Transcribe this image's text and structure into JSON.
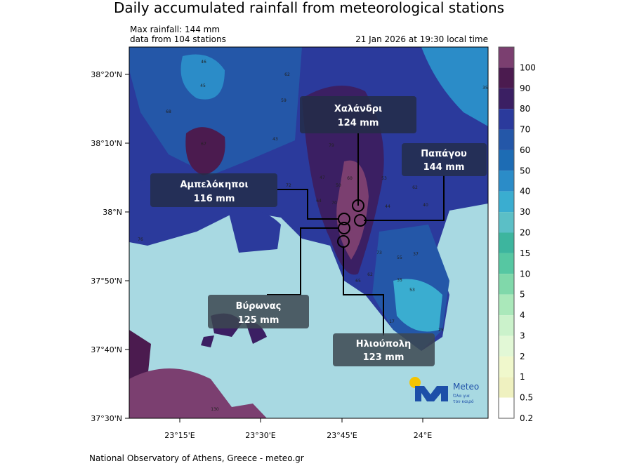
{
  "header": {
    "title": "Daily accumulated rainfall from meteorological stations",
    "max_rainfall": "Max rainfall: 144 mm",
    "stations": "data from 104 stations",
    "timestamp": "21 Jan 2026 at 19:30 local time"
  },
  "axes": {
    "y_labels": [
      "38°20'N",
      "38°10'N",
      "38°N",
      "37°50'N",
      "37°40'N",
      "37°30'N"
    ],
    "x_labels": [
      "23°15'E",
      "23°30'E",
      "23°45'E",
      "24°E"
    ]
  },
  "colorbar": {
    "levels": [
      100,
      90,
      80,
      70,
      60,
      50,
      40,
      30,
      20,
      15,
      10,
      5,
      4,
      3,
      2,
      1,
      0.5,
      0.2
    ],
    "colors": [
      "#7b3f70",
      "#4b1b4f",
      "#3b1f63",
      "#2b3a9c",
      "#2457a8",
      "#1d6cb4",
      "#2b8cc8",
      "#3aadd0",
      "#5bbfc6",
      "#3db59e",
      "#56c7a2",
      "#80d8aa",
      "#aae8ba",
      "#cbf2cb",
      "#e2f8d6",
      "#f0f8cc",
      "#eff1c0",
      "#ffffff"
    ]
  },
  "callouts": [
    {
      "place": "Χαλάνδρι",
      "amount": "124 mm"
    },
    {
      "place": "Παπάγου",
      "amount": "144 mm"
    },
    {
      "place": "Αμπελόκηποι",
      "amount": "116 mm"
    },
    {
      "place": "Βύρωνας",
      "amount": "125 mm"
    },
    {
      "place": "Ηλιούπολη",
      "amount": "123 mm"
    }
  ],
  "station_labels": [
    "46",
    "45",
    "62",
    "59",
    "68",
    "43",
    "79",
    "67",
    "72",
    "47",
    "50",
    "60",
    "64",
    "70",
    "53",
    "62",
    "44",
    "40",
    "73",
    "55",
    "37",
    "35",
    "53",
    "62",
    "65",
    "35",
    "25",
    "17",
    "130",
    "76"
  ],
  "logo": {
    "name": "Meteo",
    "slogan_1": "Όλα για",
    "slogan_2": "τον καιρό"
  },
  "footer": "National Observatory of Athens, Greece - meteo.gr"
}
